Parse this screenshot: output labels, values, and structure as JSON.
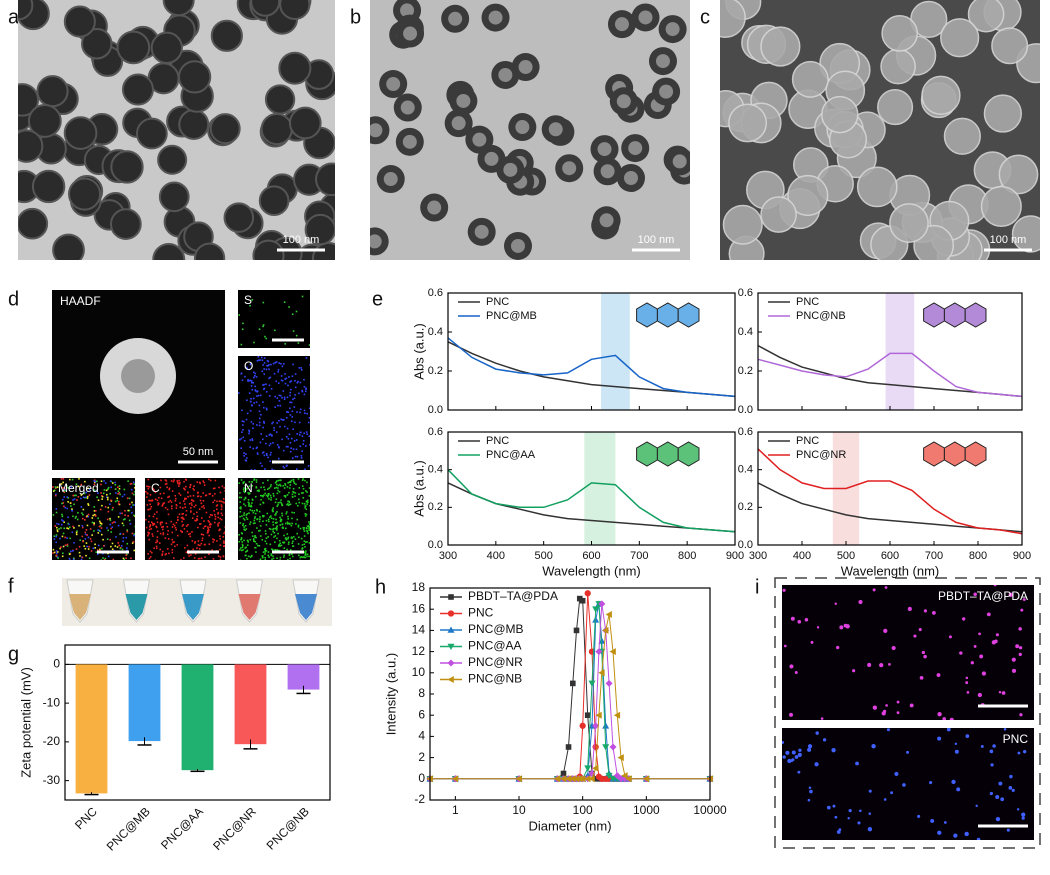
{
  "figure": {
    "panels": {
      "a": {
        "label": "a",
        "scale_bar": "100 nm"
      },
      "b": {
        "label": "b",
        "scale_bar": "100 nm"
      },
      "c": {
        "label": "c",
        "scale_bar": "100 nm"
      },
      "d": {
        "label": "d",
        "haadf": "HAADF",
        "scale_bar": "50 nm",
        "maps": [
          "S",
          "O",
          "Merged",
          "C",
          "N"
        ]
      },
      "e": {
        "label": "e"
      },
      "f": {
        "label": "f"
      },
      "g": {
        "label": "g"
      },
      "h": {
        "label": "h"
      },
      "i": {
        "label": "i",
        "images": [
          "PBDT–TA@PDA",
          "PNC"
        ]
      }
    }
  },
  "chart_data": [
    {
      "type": "line",
      "ylabel": "Abs (a.u.)",
      "x": [
        300,
        350,
        400,
        450,
        500,
        550,
        600,
        650,
        700,
        750,
        800,
        850,
        900
      ],
      "xlim": [
        300,
        900
      ],
      "xticks": [
        300,
        400,
        500,
        600,
        700,
        800,
        900
      ],
      "ylim": [
        0,
        0.6
      ],
      "yticks": [
        {
          "value": 0,
          "label": "0.0"
        },
        0.2,
        0.4,
        0.6
      ],
      "band": [
        620,
        680
      ],
      "band_color": "#bfe0f4",
      "legend": "upper left",
      "series": [
        {
          "name": "PNC",
          "color": "#333333",
          "values": [
            0.35,
            0.29,
            0.24,
            0.2,
            0.17,
            0.15,
            0.13,
            0.12,
            0.11,
            0.1,
            0.09,
            0.08,
            0.07
          ]
        },
        {
          "name": "PNC@MB",
          "color": "#1764c8",
          "values": [
            0.37,
            0.27,
            0.21,
            0.19,
            0.18,
            0.19,
            0.26,
            0.28,
            0.17,
            0.11,
            0.09,
            0.08,
            0.07
          ]
        }
      ]
    },
    {
      "type": "line",
      "x": [
        300,
        350,
        400,
        450,
        500,
        550,
        600,
        650,
        700,
        750,
        800,
        850,
        900
      ],
      "xlim": [
        300,
        900
      ],
      "xticks": [
        300,
        400,
        500,
        600,
        700,
        800,
        900
      ],
      "ylim": [
        0,
        0.6
      ],
      "yticks": [
        {
          "value": 0,
          "label": "0.0"
        },
        0.2,
        0.4,
        0.6
      ],
      "band": [
        590,
        655
      ],
      "band_color": "#e3d2f4",
      "legend": "upper left",
      "series": [
        {
          "name": "PNC",
          "color": "#333333",
          "values": [
            0.33,
            0.27,
            0.22,
            0.19,
            0.16,
            0.14,
            0.13,
            0.12,
            0.11,
            0.1,
            0.09,
            0.08,
            0.07
          ]
        },
        {
          "name": "PNC@NB",
          "color": "#b068d8",
          "values": [
            0.26,
            0.23,
            0.2,
            0.18,
            0.17,
            0.21,
            0.29,
            0.29,
            0.2,
            0.12,
            0.09,
            0.08,
            0.07
          ]
        }
      ]
    },
    {
      "type": "line",
      "ylabel": "Abs (a.u.)",
      "xlabel": "Wavelength (nm)",
      "x": [
        300,
        350,
        400,
        450,
        500,
        550,
        600,
        650,
        700,
        750,
        800,
        850,
        900
      ],
      "xlim": [
        300,
        900
      ],
      "xticks": [
        300,
        400,
        500,
        600,
        700,
        800,
        900
      ],
      "ylim": [
        0,
        0.6
      ],
      "yticks": [
        {
          "value": 0,
          "label": "0.0"
        },
        0.2,
        0.4,
        0.6
      ],
      "band": [
        585,
        650
      ],
      "band_color": "#cdeed8",
      "legend": "upper left",
      "series": [
        {
          "name": "PNC",
          "color": "#333333",
          "values": [
            0.33,
            0.27,
            0.22,
            0.19,
            0.16,
            0.14,
            0.13,
            0.12,
            0.11,
            0.1,
            0.09,
            0.08,
            0.07
          ]
        },
        {
          "name": "PNC@AA",
          "color": "#12a060",
          "values": [
            0.4,
            0.27,
            0.22,
            0.2,
            0.2,
            0.24,
            0.33,
            0.32,
            0.2,
            0.12,
            0.09,
            0.08,
            0.07
          ]
        }
      ]
    },
    {
      "type": "line",
      "xlabel": "Wavelength (nm)",
      "x": [
        300,
        350,
        400,
        450,
        500,
        550,
        600,
        650,
        700,
        750,
        800,
        850,
        900
      ],
      "xlim": [
        300,
        900
      ],
      "xticks": [
        300,
        400,
        500,
        600,
        700,
        800,
        900
      ],
      "ylim": [
        0,
        0.6
      ],
      "yticks": [
        {
          "value": 0,
          "label": "0.0"
        },
        0.2,
        0.4,
        0.6
      ],
      "band": [
        470,
        530
      ],
      "band_color": "#f8d6d6",
      "legend": "upper left",
      "series": [
        {
          "name": "PNC",
          "color": "#333333",
          "values": [
            0.33,
            0.27,
            0.22,
            0.19,
            0.16,
            0.14,
            0.13,
            0.12,
            0.11,
            0.1,
            0.09,
            0.08,
            0.07
          ]
        },
        {
          "name": "PNC@NR",
          "color": "#e02020",
          "values": [
            0.51,
            0.4,
            0.33,
            0.3,
            0.3,
            0.34,
            0.34,
            0.29,
            0.19,
            0.12,
            0.09,
            0.08,
            0.06
          ]
        }
      ]
    },
    {
      "type": "bar",
      "ylabel": "Zeta potential (mV)",
      "categories": [
        "PNC",
        "PNC@MB",
        "PNC@AA",
        "PNC@NR",
        "PNC@NB"
      ],
      "values": [
        -33.3,
        -19.8,
        -27.3,
        -20.6,
        -6.5
      ],
      "errors": [
        0.3,
        1.0,
        0.3,
        1.2,
        1.0
      ],
      "colors": [
        "#f8b040",
        "#40a0f0",
        "#20b070",
        "#f85858",
        "#b070f0"
      ],
      "ylim": [
        -35,
        5
      ],
      "yticks": [
        -30,
        -20,
        -10,
        0
      ]
    },
    {
      "type": "line",
      "xscale": "log",
      "xlabel": "Diameter (nm)",
      "ylabel": "Intensity (a.u.)",
      "legend": "upper left",
      "x": [
        0.4,
        1,
        10,
        40,
        50,
        60,
        70,
        80,
        90,
        100,
        120,
        140,
        160,
        180,
        200,
        230,
        260,
        300,
        350,
        400,
        460,
        530,
        1000,
        10000
      ],
      "xlim": [
        0.4,
        10000
      ],
      "xticks": [
        1,
        10,
        100,
        1000,
        10000
      ],
      "ylim": [
        -2,
        18
      ],
      "yticks": [
        -2,
        0,
        2,
        4,
        6,
        8,
        10,
        12,
        14,
        16,
        18
      ],
      "series": [
        {
          "name": "PBDT–TA@PDA",
          "color": "#333333",
          "marker": "square",
          "values": [
            0,
            0,
            0,
            0,
            0.5,
            3,
            9,
            14,
            17,
            16.8,
            6,
            0.5,
            0,
            0,
            0,
            0,
            0,
            0,
            0,
            0,
            0,
            0,
            0,
            0
          ]
        },
        {
          "name": "PNC",
          "color": "#e8302a",
          "marker": "circle",
          "values": [
            0,
            0,
            0,
            0,
            0,
            0,
            0,
            0,
            0.2,
            5,
            17.5,
            12,
            3,
            0.2,
            0,
            0,
            0,
            0,
            0,
            0,
            0,
            0,
            0,
            0
          ]
        },
        {
          "name": "PNC@MB",
          "color": "#1f78c8",
          "marker": "triangle",
          "values": [
            0,
            0,
            0,
            0,
            0,
            0,
            0,
            0,
            0,
            0,
            0.3,
            5,
            15,
            16.5,
            13,
            5,
            0.5,
            0,
            0,
            0,
            0,
            0,
            0,
            0
          ]
        },
        {
          "name": "PNC@AA",
          "color": "#18a86a",
          "marker": "triangle-down",
          "values": [
            0,
            0,
            0,
            0,
            0,
            0,
            0,
            0,
            0,
            0,
            1,
            9,
            16,
            16.5,
            12,
            3,
            0.3,
            0,
            0,
            0,
            0,
            0,
            0,
            0
          ]
        },
        {
          "name": "PNC@NR",
          "color": "#c050e0",
          "marker": "diamond",
          "values": [
            0,
            0,
            0,
            0,
            0,
            0,
            0,
            0,
            0,
            0,
            0,
            0.5,
            5,
            12,
            16.5,
            14,
            9,
            3,
            0.3,
            0,
            0,
            0,
            0,
            0
          ]
        },
        {
          "name": "PNC@NB",
          "color": "#c09010",
          "marker": "triangle-left",
          "values": [
            0,
            0,
            0,
            0,
            0,
            0,
            0,
            0,
            0,
            0,
            0,
            0,
            1,
            6,
            10,
            14,
            15.5,
            12,
            6,
            2,
            0.3,
            0,
            0,
            0
          ]
        }
      ]
    }
  ]
}
